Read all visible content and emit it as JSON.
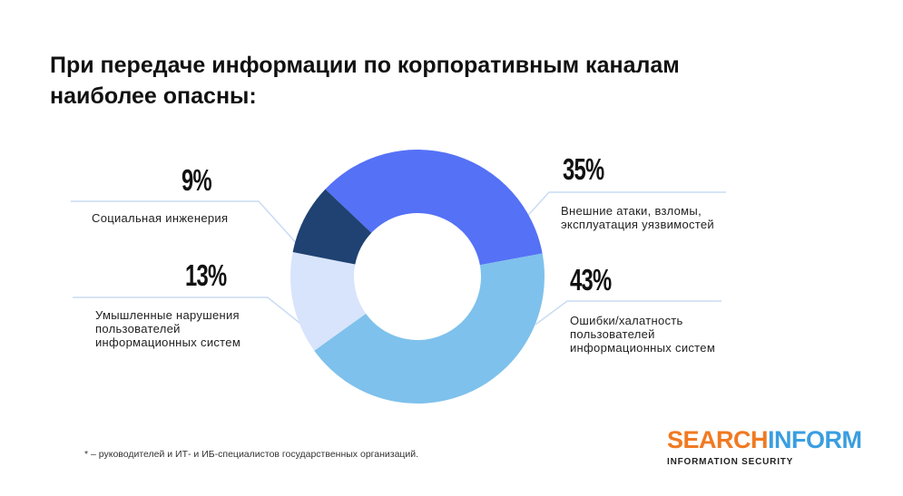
{
  "title_lines": [
    "При передаче информации по корпоративным каналам",
    "наиболее опасны:"
  ],
  "chart_data": {
    "type": "pie",
    "categories": [
      "Внешние атаки, взломы, эксплуатация уязвимостей",
      "Ошибки/халатность пользователей информационных систем",
      "Умышленные нарушения пользователей информационных систем",
      "Социальная инженерия"
    ],
    "values": [
      35,
      43,
      13,
      9
    ],
    "value_labels": [
      "35%",
      "43%",
      "13%",
      "9%"
    ],
    "colors": [
      "#5571f6",
      "#7ec1ec",
      "#d8e4fb",
      "#1f4272"
    ]
  },
  "footnote": "* – руководителей и ИТ- и ИБ-специалистов государственных организаций.",
  "logo": {
    "part1": "SEARCH",
    "part2": "INFORM",
    "tagline": "INFORMATION SECURITY"
  }
}
